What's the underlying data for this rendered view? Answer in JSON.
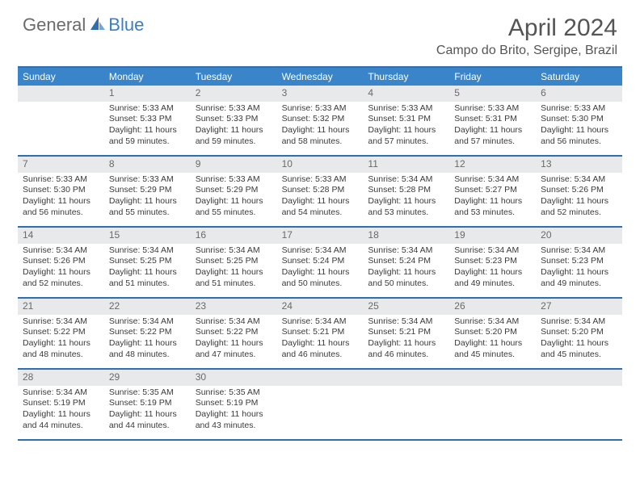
{
  "logo": {
    "word1": "General",
    "word2": "Blue"
  },
  "title": "April 2024",
  "location": "Campo do Brito, Sergipe, Brazil",
  "colors": {
    "header_bar": "#3a85c9",
    "rule": "#2f6faf",
    "daynum_bg": "#e8e9ea",
    "text": "#333333",
    "logo_gray": "#6b6b6b",
    "logo_blue": "#3a7fc4"
  },
  "weekdays": [
    "Sunday",
    "Monday",
    "Tuesday",
    "Wednesday",
    "Thursday",
    "Friday",
    "Saturday"
  ],
  "weeks": [
    [
      null,
      {
        "n": "1",
        "sr": "Sunrise: 5:33 AM",
        "ss": "Sunset: 5:33 PM",
        "d1": "Daylight: 11 hours",
        "d2": "and 59 minutes."
      },
      {
        "n": "2",
        "sr": "Sunrise: 5:33 AM",
        "ss": "Sunset: 5:33 PM",
        "d1": "Daylight: 11 hours",
        "d2": "and 59 minutes."
      },
      {
        "n": "3",
        "sr": "Sunrise: 5:33 AM",
        "ss": "Sunset: 5:32 PM",
        "d1": "Daylight: 11 hours",
        "d2": "and 58 minutes."
      },
      {
        "n": "4",
        "sr": "Sunrise: 5:33 AM",
        "ss": "Sunset: 5:31 PM",
        "d1": "Daylight: 11 hours",
        "d2": "and 57 minutes."
      },
      {
        "n": "5",
        "sr": "Sunrise: 5:33 AM",
        "ss": "Sunset: 5:31 PM",
        "d1": "Daylight: 11 hours",
        "d2": "and 57 minutes."
      },
      {
        "n": "6",
        "sr": "Sunrise: 5:33 AM",
        "ss": "Sunset: 5:30 PM",
        "d1": "Daylight: 11 hours",
        "d2": "and 56 minutes."
      }
    ],
    [
      {
        "n": "7",
        "sr": "Sunrise: 5:33 AM",
        "ss": "Sunset: 5:30 PM",
        "d1": "Daylight: 11 hours",
        "d2": "and 56 minutes."
      },
      {
        "n": "8",
        "sr": "Sunrise: 5:33 AM",
        "ss": "Sunset: 5:29 PM",
        "d1": "Daylight: 11 hours",
        "d2": "and 55 minutes."
      },
      {
        "n": "9",
        "sr": "Sunrise: 5:33 AM",
        "ss": "Sunset: 5:29 PM",
        "d1": "Daylight: 11 hours",
        "d2": "and 55 minutes."
      },
      {
        "n": "10",
        "sr": "Sunrise: 5:33 AM",
        "ss": "Sunset: 5:28 PM",
        "d1": "Daylight: 11 hours",
        "d2": "and 54 minutes."
      },
      {
        "n": "11",
        "sr": "Sunrise: 5:34 AM",
        "ss": "Sunset: 5:28 PM",
        "d1": "Daylight: 11 hours",
        "d2": "and 53 minutes."
      },
      {
        "n": "12",
        "sr": "Sunrise: 5:34 AM",
        "ss": "Sunset: 5:27 PM",
        "d1": "Daylight: 11 hours",
        "d2": "and 53 minutes."
      },
      {
        "n": "13",
        "sr": "Sunrise: 5:34 AM",
        "ss": "Sunset: 5:26 PM",
        "d1": "Daylight: 11 hours",
        "d2": "and 52 minutes."
      }
    ],
    [
      {
        "n": "14",
        "sr": "Sunrise: 5:34 AM",
        "ss": "Sunset: 5:26 PM",
        "d1": "Daylight: 11 hours",
        "d2": "and 52 minutes."
      },
      {
        "n": "15",
        "sr": "Sunrise: 5:34 AM",
        "ss": "Sunset: 5:25 PM",
        "d1": "Daylight: 11 hours",
        "d2": "and 51 minutes."
      },
      {
        "n": "16",
        "sr": "Sunrise: 5:34 AM",
        "ss": "Sunset: 5:25 PM",
        "d1": "Daylight: 11 hours",
        "d2": "and 51 minutes."
      },
      {
        "n": "17",
        "sr": "Sunrise: 5:34 AM",
        "ss": "Sunset: 5:24 PM",
        "d1": "Daylight: 11 hours",
        "d2": "and 50 minutes."
      },
      {
        "n": "18",
        "sr": "Sunrise: 5:34 AM",
        "ss": "Sunset: 5:24 PM",
        "d1": "Daylight: 11 hours",
        "d2": "and 50 minutes."
      },
      {
        "n": "19",
        "sr": "Sunrise: 5:34 AM",
        "ss": "Sunset: 5:23 PM",
        "d1": "Daylight: 11 hours",
        "d2": "and 49 minutes."
      },
      {
        "n": "20",
        "sr": "Sunrise: 5:34 AM",
        "ss": "Sunset: 5:23 PM",
        "d1": "Daylight: 11 hours",
        "d2": "and 49 minutes."
      }
    ],
    [
      {
        "n": "21",
        "sr": "Sunrise: 5:34 AM",
        "ss": "Sunset: 5:22 PM",
        "d1": "Daylight: 11 hours",
        "d2": "and 48 minutes."
      },
      {
        "n": "22",
        "sr": "Sunrise: 5:34 AM",
        "ss": "Sunset: 5:22 PM",
        "d1": "Daylight: 11 hours",
        "d2": "and 48 minutes."
      },
      {
        "n": "23",
        "sr": "Sunrise: 5:34 AM",
        "ss": "Sunset: 5:22 PM",
        "d1": "Daylight: 11 hours",
        "d2": "and 47 minutes."
      },
      {
        "n": "24",
        "sr": "Sunrise: 5:34 AM",
        "ss": "Sunset: 5:21 PM",
        "d1": "Daylight: 11 hours",
        "d2": "and 46 minutes."
      },
      {
        "n": "25",
        "sr": "Sunrise: 5:34 AM",
        "ss": "Sunset: 5:21 PM",
        "d1": "Daylight: 11 hours",
        "d2": "and 46 minutes."
      },
      {
        "n": "26",
        "sr": "Sunrise: 5:34 AM",
        "ss": "Sunset: 5:20 PM",
        "d1": "Daylight: 11 hours",
        "d2": "and 45 minutes."
      },
      {
        "n": "27",
        "sr": "Sunrise: 5:34 AM",
        "ss": "Sunset: 5:20 PM",
        "d1": "Daylight: 11 hours",
        "d2": "and 45 minutes."
      }
    ],
    [
      {
        "n": "28",
        "sr": "Sunrise: 5:34 AM",
        "ss": "Sunset: 5:19 PM",
        "d1": "Daylight: 11 hours",
        "d2": "and 44 minutes."
      },
      {
        "n": "29",
        "sr": "Sunrise: 5:35 AM",
        "ss": "Sunset: 5:19 PM",
        "d1": "Daylight: 11 hours",
        "d2": "and 44 minutes."
      },
      {
        "n": "30",
        "sr": "Sunrise: 5:35 AM",
        "ss": "Sunset: 5:19 PM",
        "d1": "Daylight: 11 hours",
        "d2": "and 43 minutes."
      },
      null,
      null,
      null,
      null
    ]
  ]
}
